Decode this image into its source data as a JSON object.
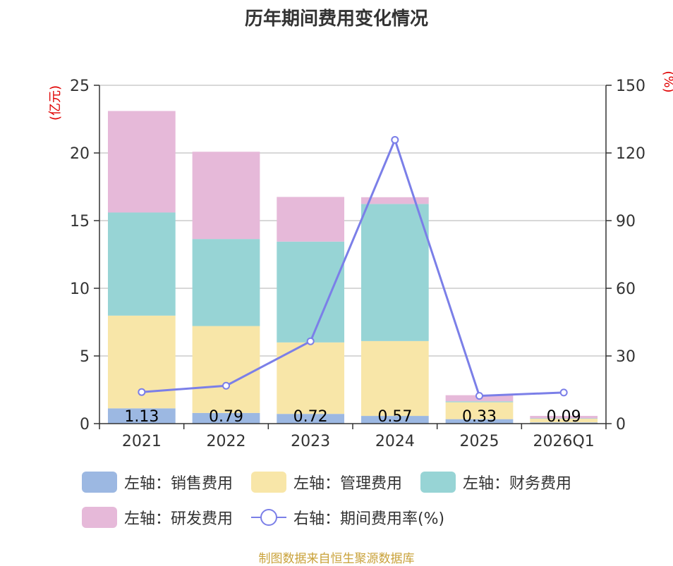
{
  "title": "历年期间费用变化情况",
  "source": "制图数据来自恒生聚源数据库",
  "chart_data": {
    "type": "bar",
    "stacked": true,
    "categories": [
      "2021",
      "2022",
      "2023",
      "2024",
      "2025",
      "2026Q1"
    ],
    "left_axis": {
      "unit": "(亿元)",
      "ylim": [
        0,
        25
      ],
      "ticks": [
        "0",
        "5",
        "10",
        "15",
        "20",
        "25"
      ]
    },
    "right_axis": {
      "unit": "(%)",
      "ylim": [
        0,
        150
      ],
      "ticks": [
        "0",
        "30",
        "60",
        "90",
        "120",
        "150"
      ]
    },
    "series": [
      {
        "name": "左轴：销售费用",
        "axis": "left",
        "kind": "bar",
        "color": "#9cb8e2",
        "values": [
          1.13,
          0.79,
          0.72,
          0.57,
          0.33,
          0.09
        ],
        "labels": [
          "1.13",
          "0.79",
          "0.72",
          "0.57",
          "0.33",
          "0.09"
        ]
      },
      {
        "name": "左轴：管理费用",
        "axis": "left",
        "kind": "bar",
        "color": "#f8e6a8",
        "values": [
          6.85,
          6.42,
          5.28,
          5.53,
          1.25,
          0.27
        ]
      },
      {
        "name": "左轴：财务费用",
        "axis": "left",
        "kind": "bar",
        "color": "#97d4d5",
        "values": [
          7.62,
          6.43,
          7.45,
          10.13,
          0.07,
          0.03
        ]
      },
      {
        "name": "左轴：研发费用",
        "axis": "left",
        "kind": "bar",
        "color": "#e6b9d9",
        "values": [
          7.5,
          6.45,
          3.3,
          0.5,
          0.45,
          0.18
        ]
      },
      {
        "name": "右轴：期间费用率(%)",
        "axis": "right",
        "kind": "line",
        "color": "#7b7fe8",
        "values": [
          14.0,
          16.8,
          36.5,
          125.8,
          12.3,
          13.8
        ]
      }
    ],
    "grid": true,
    "legend_position": "bottom"
  }
}
